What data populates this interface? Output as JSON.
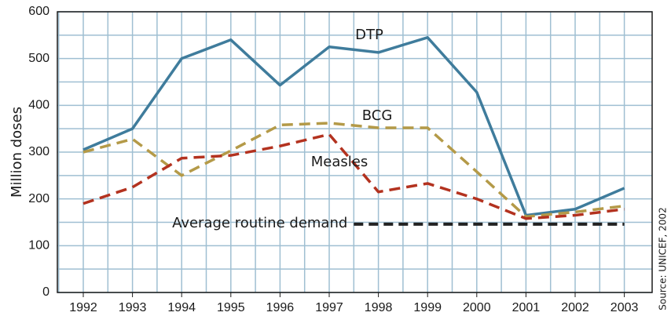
{
  "chart_data": {
    "type": "line",
    "y_label": "Million doses",
    "source": "Source: UNICEF, 2002",
    "categories": [
      "1992",
      "1993",
      "1994",
      "1995",
      "1996",
      "1997",
      "1998",
      "1999",
      "2000",
      "2001",
      "2002",
      "2003"
    ],
    "series": [
      {
        "name": "DTP",
        "color": "#3f7c9c",
        "dash": false,
        "values": [
          305,
          350,
          500,
          540,
          443,
          525,
          513,
          545,
          428,
          165,
          178,
          223
        ]
      },
      {
        "name": "BCG",
        "color": "#b49a48",
        "dash": true,
        "values": [
          300,
          328,
          250,
          303,
          358,
          362,
          352,
          352,
          258,
          162,
          172,
          185
        ]
      },
      {
        "name": "Measles",
        "color": "#b3321f",
        "dash": true,
        "values": [
          190,
          225,
          287,
          293,
          313,
          338,
          215,
          233,
          200,
          158,
          165,
          178
        ]
      }
    ],
    "reference_line": {
      "label": "Average routine demand",
      "value": 146,
      "color": "#222222"
    },
    "ylim": [
      0,
      600
    ],
    "yticks": [
      0,
      100,
      200,
      300,
      400,
      500,
      600
    ],
    "grid": true
  }
}
